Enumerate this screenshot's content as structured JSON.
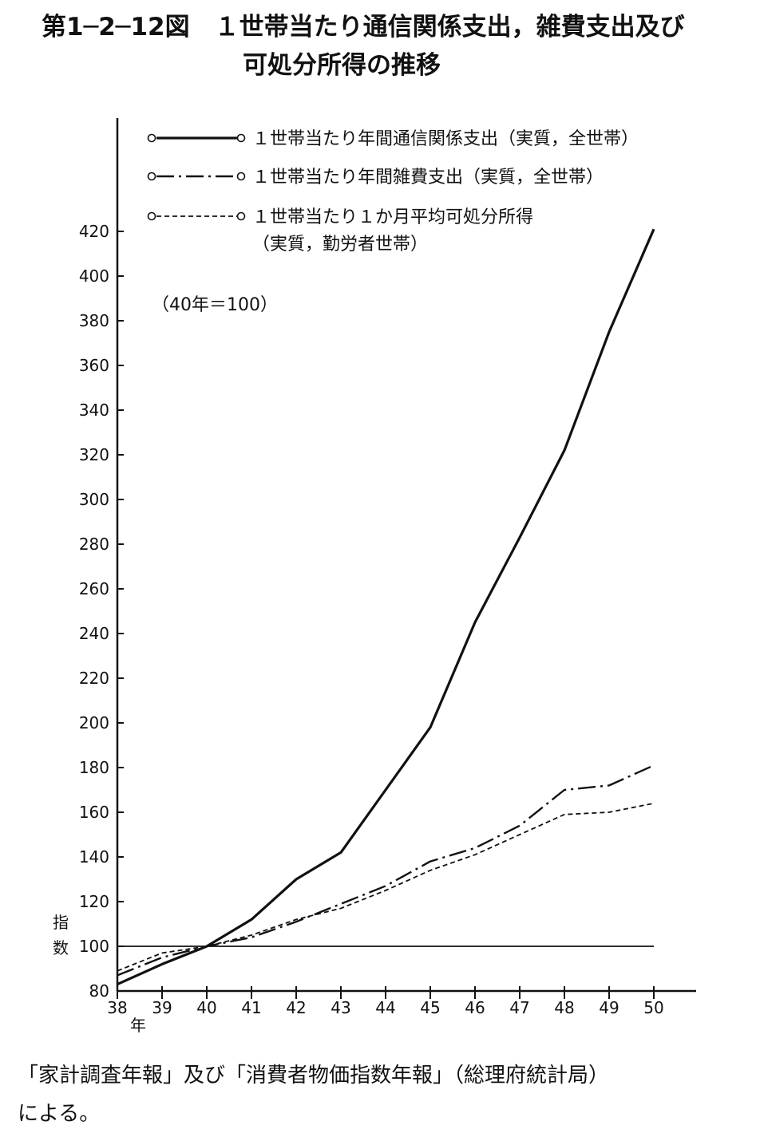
{
  "title": {
    "line1": "第1─2─12図　１世帯当たり通信関係支出，雑費支出及び",
    "line2": "可処分所得の推移"
  },
  "chart_data": {
    "type": "line",
    "title": "第1─2─12図　１世帯当たり通信関係支出，雑費支出及び可処分所得の推移",
    "ylabel": "指数",
    "xlabel": "年",
    "note": "（40年＝100）",
    "x": [
      38,
      39,
      40,
      41,
      42,
      43,
      44,
      45,
      46,
      47,
      48,
      49,
      50
    ],
    "x_tick_labels": [
      "38",
      "39",
      "40",
      "41",
      "42",
      "43",
      "44",
      "45",
      "46",
      "47",
      "48",
      "49",
      "50"
    ],
    "y_ticks": [
      80,
      100,
      120,
      140,
      160,
      180,
      200,
      220,
      240,
      260,
      280,
      300,
      320,
      340,
      360,
      380,
      400,
      420
    ],
    "ylim": [
      80,
      420
    ],
    "xlim": [
      38,
      50
    ],
    "reference_line": 100,
    "legend_position": "top",
    "series": [
      {
        "name": "１世帯当たり年間通信関係支出（実質，全世帯）",
        "style": "solid",
        "values": [
          83,
          92,
          100,
          112,
          130,
          142,
          170,
          198,
          245,
          283,
          322,
          375,
          421
        ]
      },
      {
        "name": "１世帯当たり年間雑費支出（実質，全世帯）",
        "style": "dashdot",
        "values": [
          87,
          95,
          100,
          104,
          111,
          119,
          127,
          138,
          144,
          154,
          170,
          172,
          181
        ]
      },
      {
        "name": "１世帯当たり１か月平均可処分所得",
        "name_line2": "（実質，勤労者世帯）",
        "style": "dashed",
        "values": [
          89,
          97,
          100,
          105,
          112,
          117,
          125,
          134,
          141,
          150,
          159,
          160,
          164
        ]
      }
    ]
  },
  "source": {
    "line1": "「家計調査年報」及び「消費者物価指数年報」（総理府統計局）",
    "line2": "による。"
  }
}
